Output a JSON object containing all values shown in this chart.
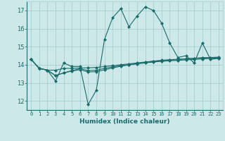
{
  "xlabel": "Humidex (Indice chaleur)",
  "xlim": [
    -0.5,
    23.5
  ],
  "ylim": [
    11.5,
    17.5
  ],
  "yticks": [
    12,
    13,
    14,
    15,
    16,
    17
  ],
  "xticks": [
    0,
    1,
    2,
    3,
    4,
    5,
    6,
    7,
    8,
    9,
    10,
    11,
    12,
    13,
    14,
    15,
    16,
    17,
    18,
    19,
    20,
    21,
    22,
    23
  ],
  "background_color": "#cce8e8",
  "grid_color": "#aacfcf",
  "line_color": "#1a6b6b",
  "series": [
    [
      14.3,
      13.8,
      13.7,
      13.1,
      14.1,
      13.9,
      13.9,
      11.8,
      12.6,
      15.4,
      16.6,
      17.1,
      16.1,
      16.7,
      17.2,
      17.0,
      16.3,
      15.2,
      14.4,
      14.5,
      14.1,
      15.2,
      14.3,
      14.35
    ],
    [
      14.3,
      13.8,
      13.7,
      13.7,
      13.8,
      13.8,
      13.82,
      13.83,
      13.85,
      13.9,
      13.95,
      14.0,
      14.05,
      14.1,
      14.15,
      14.2,
      14.25,
      14.28,
      14.3,
      14.33,
      14.35,
      14.37,
      14.38,
      14.4
    ],
    [
      14.3,
      13.8,
      13.7,
      13.4,
      13.55,
      13.65,
      13.73,
      13.6,
      13.62,
      13.72,
      13.82,
      13.92,
      13.99,
      14.05,
      14.1,
      14.15,
      14.19,
      14.22,
      14.24,
      14.27,
      14.29,
      14.32,
      14.35,
      14.37
    ],
    [
      14.3,
      13.8,
      13.7,
      13.4,
      13.55,
      13.68,
      13.78,
      13.68,
      13.7,
      13.8,
      13.88,
      13.95,
      14.0,
      14.07,
      14.13,
      14.19,
      14.22,
      14.25,
      14.29,
      14.32,
      14.36,
      14.39,
      14.4,
      14.42
    ]
  ]
}
